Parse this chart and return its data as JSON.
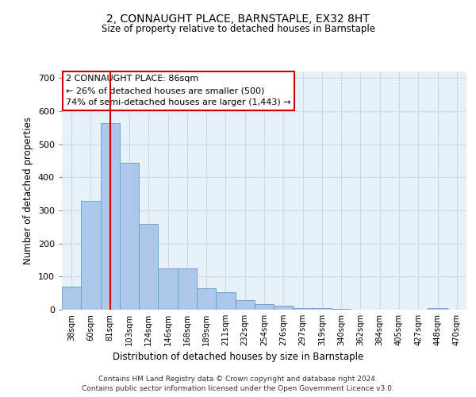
{
  "title": "2, CONNAUGHT PLACE, BARNSTAPLE, EX32 8HT",
  "subtitle": "Size of property relative to detached houses in Barnstaple",
  "xlabel": "Distribution of detached houses by size in Barnstaple",
  "ylabel": "Number of detached properties",
  "bar_labels": [
    "38sqm",
    "60sqm",
    "81sqm",
    "103sqm",
    "124sqm",
    "146sqm",
    "168sqm",
    "189sqm",
    "211sqm",
    "232sqm",
    "254sqm",
    "276sqm",
    "297sqm",
    "319sqm",
    "340sqm",
    "362sqm",
    "384sqm",
    "405sqm",
    "427sqm",
    "448sqm",
    "470sqm"
  ],
  "bar_values": [
    70,
    330,
    565,
    443,
    260,
    125,
    125,
    65,
    52,
    30,
    18,
    13,
    6,
    6,
    2,
    0,
    0,
    0,
    0,
    4,
    0
  ],
  "bar_color": "#aec6e8",
  "bar_edge_color": "#5a9fd4",
  "bar_width": 1.0,
  "vline_x": 2,
  "vline_color": "#cc0000",
  "annotation_text": "2 CONNAUGHT PLACE: 86sqm\n← 26% of detached houses are smaller (500)\n74% of semi-detached houses are larger (1,443) →",
  "annotation_box_color": "#ffffff",
  "annotation_box_edge": "#cc0000",
  "ylim": [
    0,
    720
  ],
  "yticks": [
    0,
    100,
    200,
    300,
    400,
    500,
    600,
    700
  ],
  "background_color": "#ffffff",
  "grid_color": "#ccd9e8",
  "footer_line1": "Contains HM Land Registry data © Crown copyright and database right 2024.",
  "footer_line2": "Contains public sector information licensed under the Open Government Licence v3.0."
}
